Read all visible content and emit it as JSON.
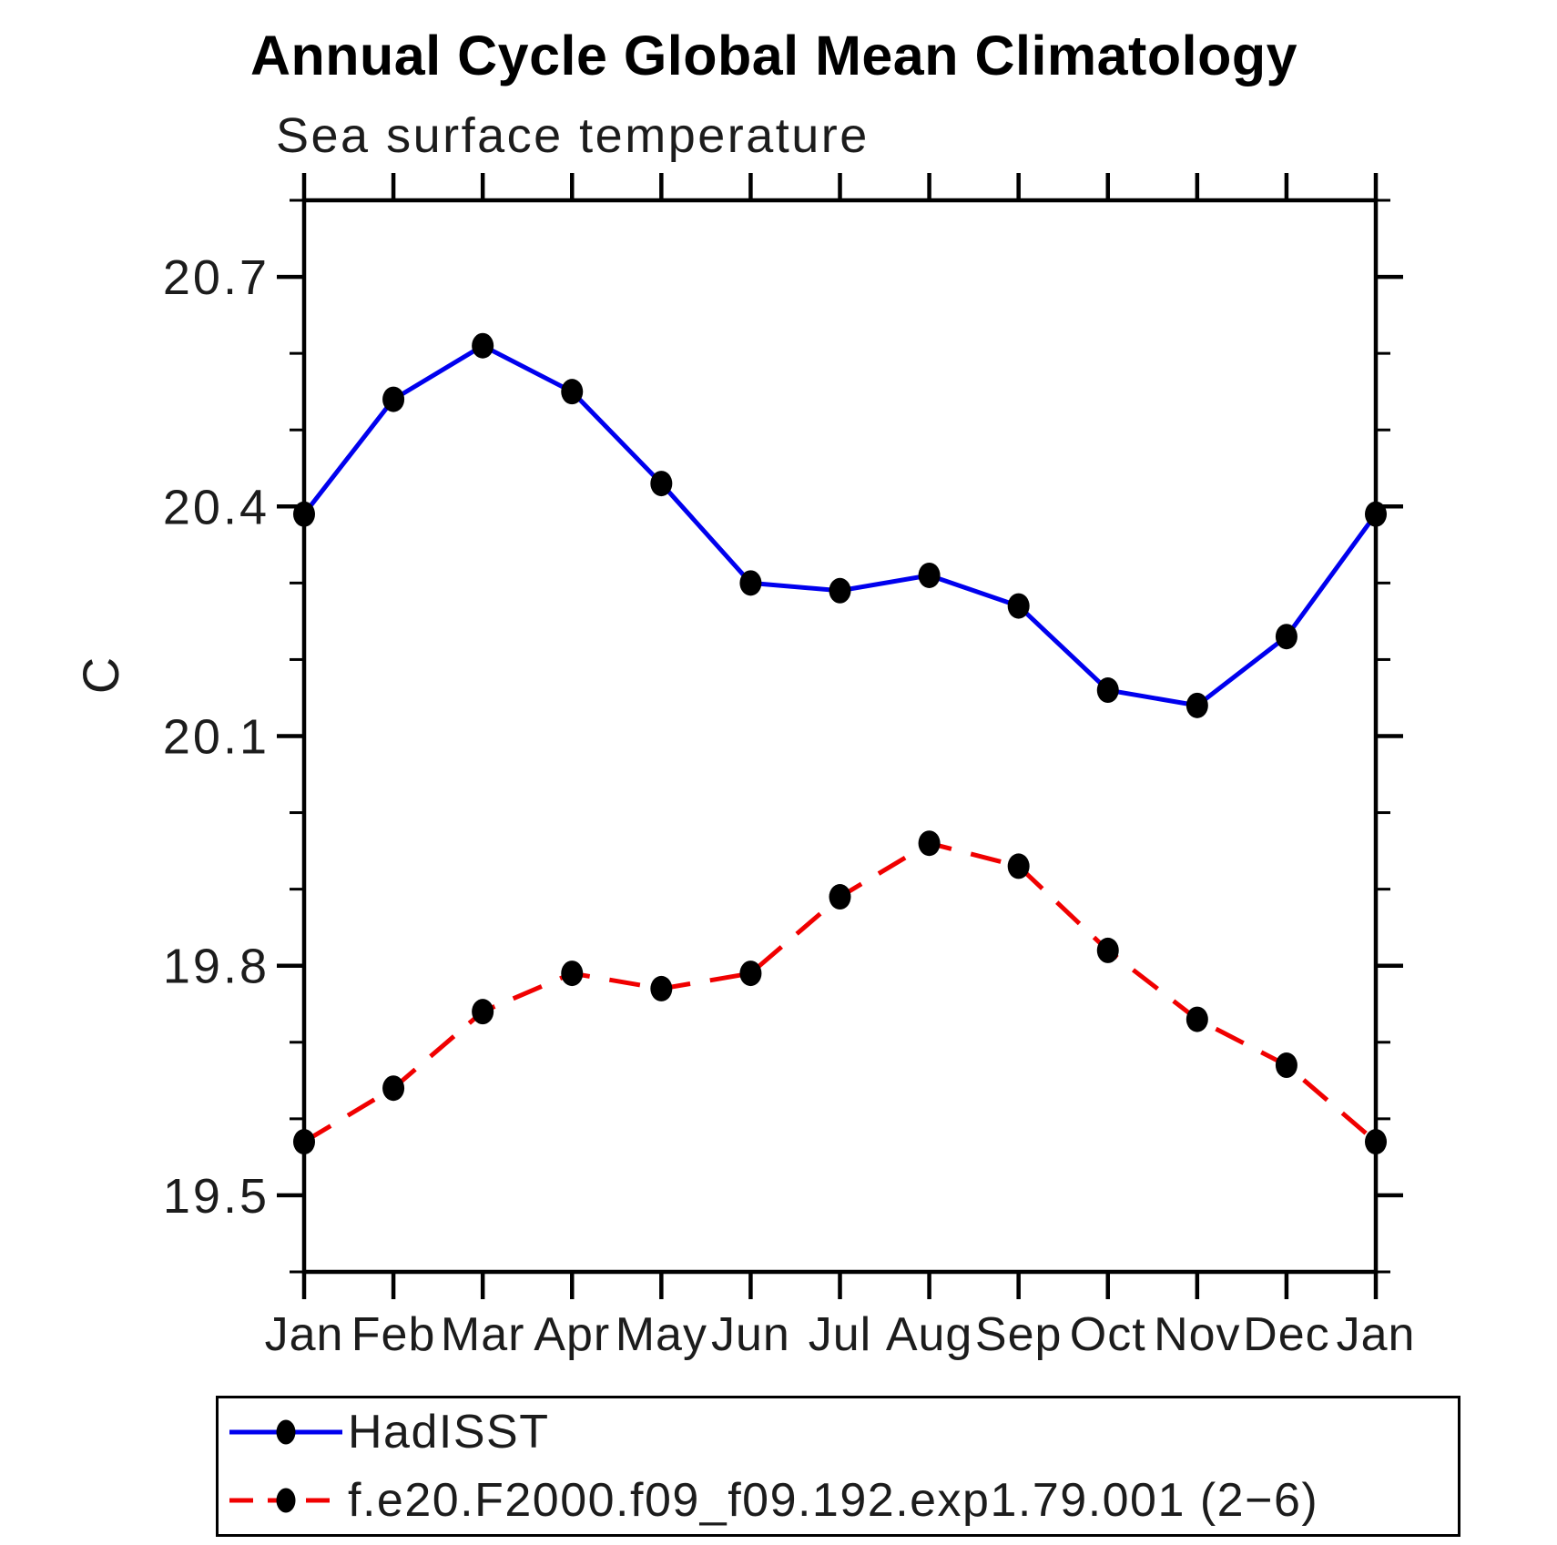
{
  "page": {
    "background": "#ffffff"
  },
  "chart_data": {
    "type": "line",
    "title": "Annual Cycle Global Mean Climatology",
    "subtitle": "Sea surface temperature",
    "ylabel": "C",
    "categories": [
      "Jan",
      "Feb",
      "Mar",
      "Apr",
      "May",
      "Jun",
      "Jul",
      "Aug",
      "Sep",
      "Oct",
      "Nov",
      "Dec",
      "Jan"
    ],
    "y_axis": {
      "min": 19.4,
      "max": 20.8,
      "major_ticks": [
        19.5,
        19.8,
        20.1,
        20.4,
        20.7
      ],
      "minor_step": 0.1,
      "grid": false
    },
    "series": [
      {
        "name": "HadISST",
        "color": "#0000ee",
        "line_style": "solid",
        "marker": "filled-circle",
        "marker_color": "#000000",
        "values": [
          20.39,
          20.54,
          20.61,
          20.55,
          20.43,
          20.3,
          20.29,
          20.31,
          20.27,
          20.16,
          20.14,
          20.23,
          20.39
        ]
      },
      {
        "name": "f.e20.F2000.f09_f09.192.exp1.79.001 (2−6)",
        "color": "#f00000",
        "line_style": "dashed",
        "marker": "filled-circle",
        "marker_color": "#000000",
        "values": [
          19.57,
          19.64,
          19.74,
          19.79,
          19.77,
          19.79,
          19.89,
          19.96,
          19.93,
          19.82,
          19.73,
          19.67,
          19.57
        ]
      }
    ],
    "legend": {
      "position": "bottom-left-box"
    }
  }
}
